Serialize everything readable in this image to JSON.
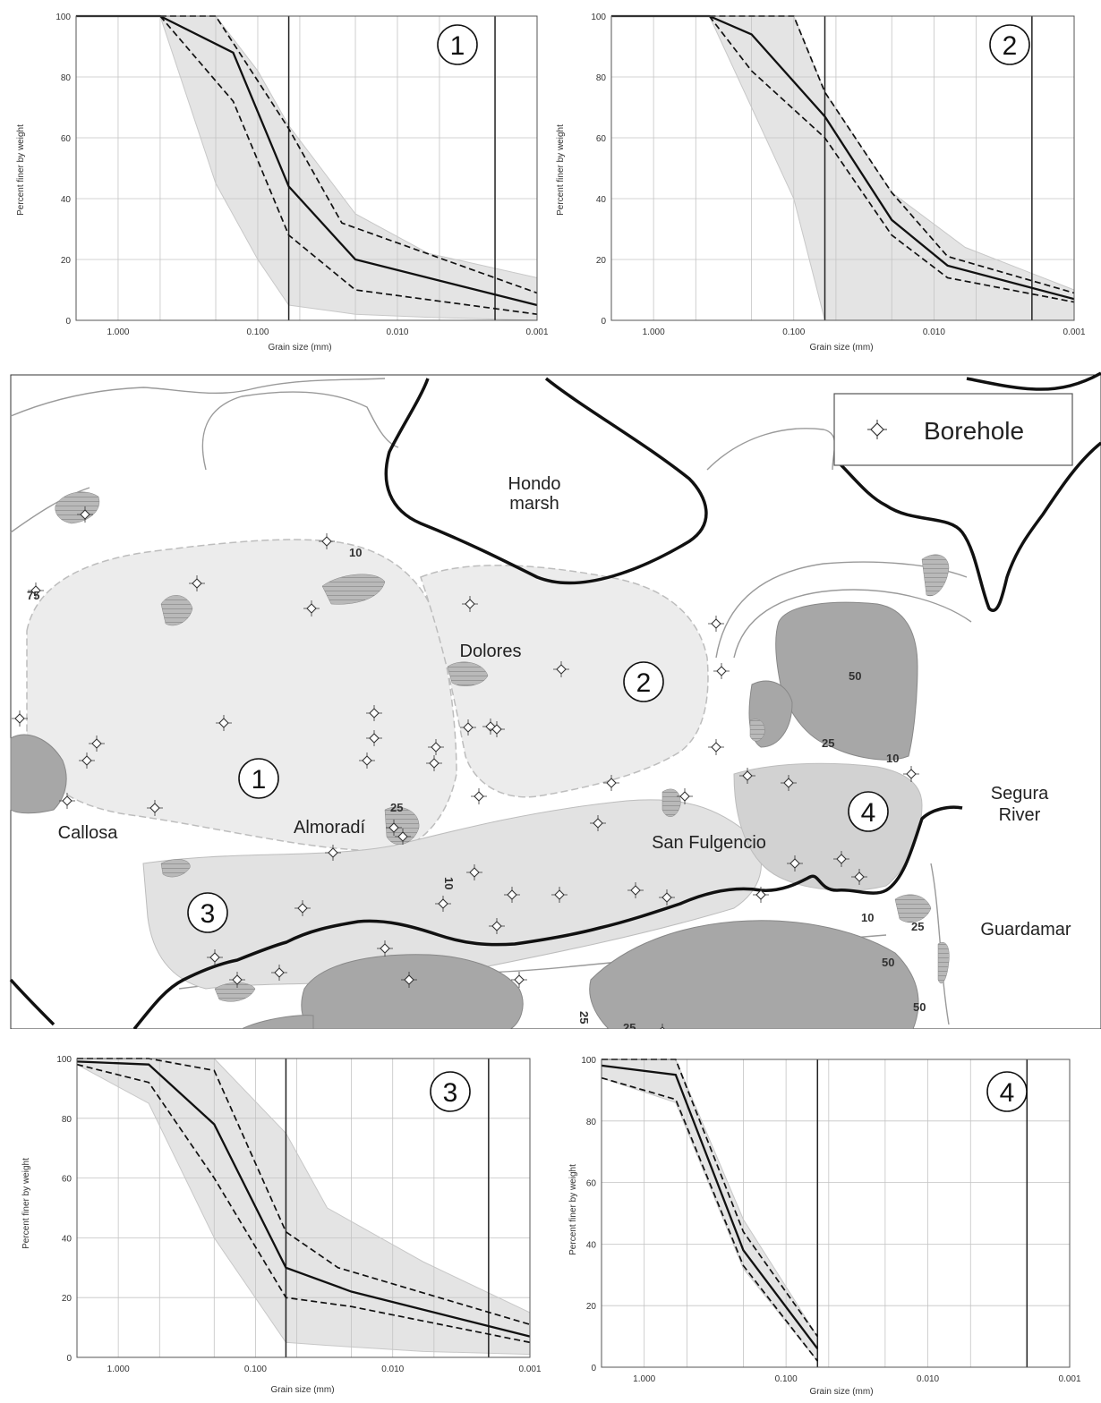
{
  "charts": [
    {
      "id": "c1",
      "zone_label": "1",
      "ylabel": "Percent finer by weight",
      "xlabel": "Grain size (mm)",
      "xticks": [
        "1.000",
        "0.100",
        "0.010",
        "0.001"
      ],
      "yticks": [
        "0",
        "20",
        "40",
        "60",
        "80",
        "100"
      ]
    },
    {
      "id": "c2",
      "zone_label": "2",
      "ylabel": "Percent finer by weight",
      "xlabel": "Grain size (mm)",
      "xticks": [
        "1.000",
        "0.100",
        "0.010",
        "0.001"
      ],
      "yticks": [
        "0",
        "20",
        "40",
        "60",
        "80",
        "100"
      ]
    },
    {
      "id": "c3",
      "zone_label": "3",
      "ylabel": "Percent finer by weight",
      "xlabel": "Grain size (mm)",
      "xticks": [
        "1.000",
        "0.100",
        "0.010",
        "0.001"
      ],
      "yticks": [
        "0",
        "20",
        "40",
        "60",
        "80",
        "100"
      ]
    },
    {
      "id": "c4",
      "zone_label": "4",
      "ylabel": "Percent finer by weight",
      "xlabel": "Grain size (mm)",
      "xticks": [
        "1.000",
        "0.100",
        "0.010",
        "0.001"
      ],
      "yticks": [
        "0",
        "20",
        "40",
        "60",
        "80",
        "100"
      ]
    }
  ],
  "chart_data": [
    {
      "type": "line",
      "xlim": [
        2.0,
        0.001
      ],
      "ylim": [
        0,
        100
      ],
      "xscale": "log (reversed)",
      "vlines": [
        0.06,
        0.002
      ],
      "envelope": {
        "x": [
          0.5,
          0.2,
          0.1,
          0.06,
          0.02,
          0.006,
          0.001
        ],
        "upper": [
          100,
          100,
          82,
          64,
          35,
          22,
          14
        ],
        "lower": [
          100,
          45,
          20,
          5,
          2,
          1,
          0
        ]
      },
      "series": [
        {
          "style": "solid",
          "x": [
            2.0,
            0.5,
            0.15,
            0.06,
            0.02,
            0.001
          ],
          "y": [
            100,
            100,
            88,
            44,
            20,
            5
          ]
        },
        {
          "style": "dashed",
          "x": [
            0.5,
            0.2,
            0.06,
            0.025,
            0.001
          ],
          "y": [
            100,
            100,
            63,
            32,
            9
          ]
        },
        {
          "style": "dashed",
          "x": [
            0.5,
            0.15,
            0.06,
            0.02,
            0.001
          ],
          "y": [
            100,
            72,
            28,
            10,
            2
          ]
        }
      ]
    },
    {
      "type": "line",
      "xlim": [
        2.0,
        0.001
      ],
      "ylim": [
        0,
        100
      ],
      "xscale": "log (reversed)",
      "vlines": [
        0.06,
        0.002
      ],
      "envelope": {
        "x": [
          0.4,
          0.1,
          0.06,
          0.02,
          0.006,
          0.001
        ],
        "upper": [
          100,
          100,
          75,
          42,
          24,
          10
        ],
        "lower": [
          100,
          40,
          0,
          0,
          0,
          0
        ]
      },
      "series": [
        {
          "style": "solid",
          "x": [
            2.0,
            0.4,
            0.2,
            0.06,
            0.02,
            0.008,
            0.001
          ],
          "y": [
            100,
            100,
            94,
            67,
            33,
            18,
            7
          ]
        },
        {
          "style": "dashed",
          "x": [
            0.4,
            0.1,
            0.06,
            0.02,
            0.008,
            0.001
          ],
          "y": [
            100,
            100,
            75,
            42,
            21,
            9
          ]
        },
        {
          "style": "dashed",
          "x": [
            0.4,
            0.2,
            0.06,
            0.02,
            0.008,
            0.001
          ],
          "y": [
            100,
            82,
            60,
            28,
            14,
            6
          ]
        }
      ]
    },
    {
      "type": "line",
      "xlim": [
        2.0,
        0.001
      ],
      "ylim": [
        0,
        100
      ],
      "xscale": "log (reversed)",
      "vlines": [
        0.06,
        0.002
      ],
      "envelope": {
        "x": [
          2.0,
          0.6,
          0.2,
          0.06,
          0.03,
          0.006,
          0.001
        ],
        "upper": [
          100,
          100,
          100,
          75,
          50,
          32,
          15
        ],
        "lower": [
          98,
          85,
          40,
          5,
          4,
          2,
          1
        ]
      },
      "series": [
        {
          "style": "solid",
          "x": [
            2.0,
            0.6,
            0.2,
            0.06,
            0.02,
            0.001
          ],
          "y": [
            99,
            98,
            78,
            30,
            22,
            7
          ]
        },
        {
          "style": "dashed",
          "x": [
            2.0,
            0.6,
            0.2,
            0.06,
            0.025,
            0.001
          ],
          "y": [
            100,
            100,
            96,
            42,
            30,
            11
          ]
        },
        {
          "style": "dashed",
          "x": [
            2.0,
            0.6,
            0.2,
            0.06,
            0.02,
            0.001
          ],
          "y": [
            98,
            92,
            60,
            20,
            17,
            5
          ]
        }
      ]
    },
    {
      "type": "line",
      "xlim": [
        2.0,
        0.001
      ],
      "ylim": [
        0,
        100
      ],
      "xscale": "log (reversed)",
      "vlines": [
        0.06,
        0.002
      ],
      "envelope": {
        "x": [
          2.0,
          0.6,
          0.2,
          0.06
        ],
        "upper": [
          100,
          100,
          48,
          10
        ],
        "lower": [
          94,
          86,
          32,
          2
        ]
      },
      "series": [
        {
          "style": "solid",
          "x": [
            2.0,
            0.6,
            0.2,
            0.06
          ],
          "y": [
            98,
            95,
            38,
            6
          ]
        },
        {
          "style": "dashed",
          "x": [
            2.0,
            0.6,
            0.2,
            0.06
          ],
          "y": [
            100,
            100,
            44,
            10
          ]
        },
        {
          "style": "dashed",
          "x": [
            2.0,
            0.6,
            0.2,
            0.06
          ],
          "y": [
            94,
            87,
            33,
            2
          ]
        }
      ]
    }
  ],
  "map": {
    "places": [
      "Hondo",
      "marsh",
      "Dolores",
      "Callosa",
      "Almoradí",
      "San Fulgencio",
      "Segura",
      "River",
      "Guardamar"
    ],
    "zone_labels": [
      "1",
      "2",
      "3",
      "4"
    ],
    "contour_labels": [
      "10",
      "10",
      "10",
      "25",
      "25",
      "25",
      "50",
      "50",
      "50",
      "75",
      "25",
      "25",
      "10"
    ],
    "legend": {
      "label": "Borehole",
      "icon": "borehole-diamond-icon"
    },
    "colors": {
      "zone_fill": "#ececec",
      "relief_fill": "#a7a7a7",
      "river": "#111111",
      "contour": "#9a9a9a"
    }
  }
}
